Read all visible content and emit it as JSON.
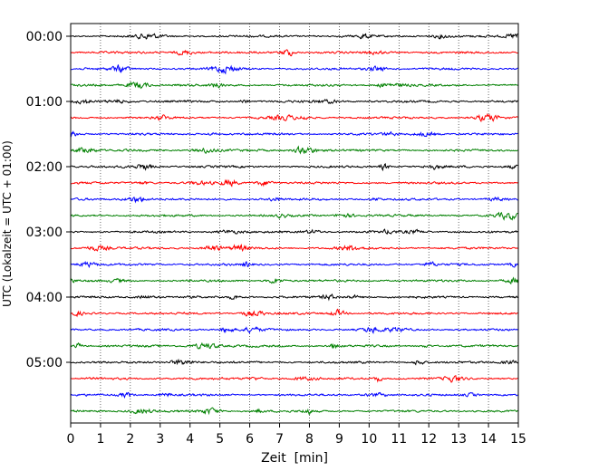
{
  "chart_data": {
    "type": "line",
    "title": "",
    "xlabel": "Zeit  [min]",
    "ylabel": "UTC (Lokalzeit = UTC + 01:00)",
    "xlim": [
      0,
      15
    ],
    "x_ticks": [
      "0",
      "1",
      "2",
      "3",
      "4",
      "5",
      "6",
      "7",
      "8",
      "9",
      "10",
      "11",
      "12",
      "13",
      "14",
      "15"
    ],
    "y_ticks": [
      "00:00",
      "01:00",
      "02:00",
      "03:00",
      "04:00",
      "05:00"
    ],
    "grid": "vertical dotted",
    "trace_interval_min": 15,
    "trace_count": 24,
    "trace_colors": [
      "#000000",
      "#ff0000",
      "#0000ff",
      "#008000"
    ]
  }
}
